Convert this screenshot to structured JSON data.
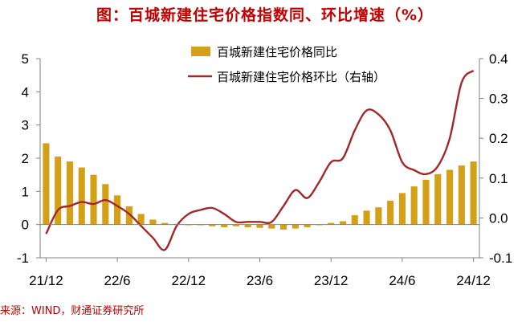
{
  "title": "图：百城新建住宅价格指数同、环比增速（%）",
  "source": "来源：WIND，财通证券研究所",
  "colors": {
    "title": "#c00000",
    "bar": "#d4a017",
    "line": "#a0282a",
    "axis": "#808080",
    "source": "#c00000"
  },
  "chart_data": {
    "type": "bar+line",
    "x_tick_labels": [
      "21/12",
      "22/6",
      "22/12",
      "23/6",
      "23/12",
      "24/6",
      "24/12"
    ],
    "x": [
      "21/12",
      "22/1",
      "22/2",
      "22/3",
      "22/4",
      "22/5",
      "22/6",
      "22/7",
      "22/8",
      "22/9",
      "22/10",
      "22/11",
      "22/12",
      "23/1",
      "23/2",
      "23/3",
      "23/4",
      "23/5",
      "23/6",
      "23/7",
      "23/8",
      "23/9",
      "23/10",
      "23/11",
      "23/12",
      "24/1",
      "24/2",
      "24/3",
      "24/4",
      "24/5",
      "24/6",
      "24/7",
      "24/8",
      "24/9",
      "24/10",
      "24/11",
      "24/12"
    ],
    "y_left": {
      "min": -1,
      "max": 5,
      "ticks": [
        -1,
        0,
        1,
        2,
        3,
        4,
        5
      ]
    },
    "y_right": {
      "min": -0.1,
      "max": 0.4,
      "ticks": [
        "-0.1",
        "0.0",
        "0.1",
        "0.2",
        "0.3",
        "0.4"
      ]
    },
    "series": [
      {
        "name": "百城新建住宅价格同比",
        "type": "bar",
        "axis": "left",
        "values": [
          2.45,
          2.05,
          1.9,
          1.72,
          1.5,
          1.22,
          0.88,
          0.55,
          0.32,
          0.15,
          0.05,
          0.02,
          0.0,
          -0.02,
          -0.05,
          -0.08,
          -0.05,
          -0.08,
          -0.1,
          -0.12,
          -0.15,
          -0.12,
          -0.08,
          -0.02,
          0.05,
          0.1,
          0.28,
          0.42,
          0.52,
          0.72,
          0.95,
          1.15,
          1.35,
          1.52,
          1.65,
          1.78,
          1.9
        ]
      },
      {
        "name": "百城新建住宅价格环比（右轴）",
        "type": "line",
        "axis": "right",
        "values": [
          -0.04,
          0.02,
          0.03,
          0.04,
          0.035,
          0.045,
          0.03,
          0.01,
          -0.02,
          -0.05,
          -0.08,
          -0.02,
          0.01,
          0.02,
          0.025,
          0.01,
          -0.01,
          -0.01,
          -0.01,
          -0.01,
          0.03,
          0.07,
          0.05,
          0.09,
          0.14,
          0.15,
          0.22,
          0.27,
          0.26,
          0.22,
          0.14,
          0.12,
          0.11,
          0.13,
          0.2,
          0.34,
          0.37
        ]
      }
    ],
    "legend_position": "top-right"
  }
}
